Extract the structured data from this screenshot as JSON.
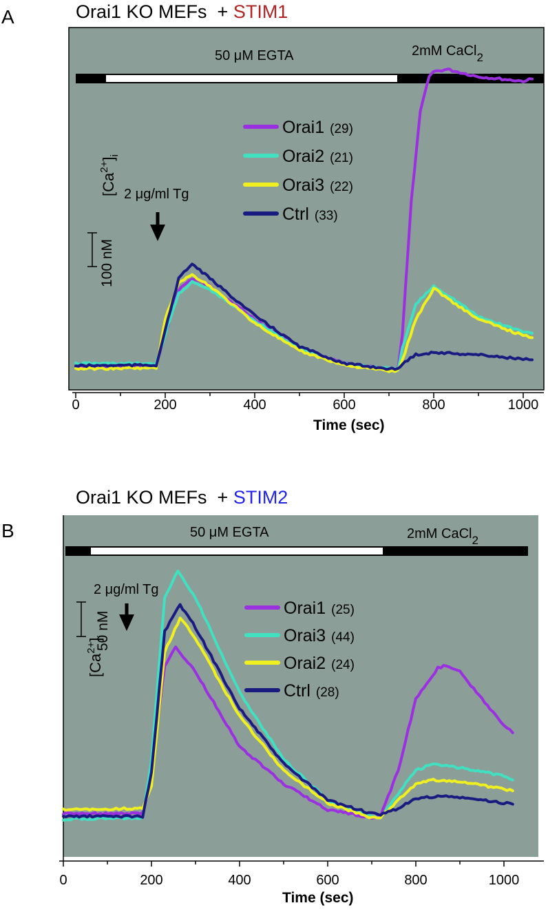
{
  "panels": [
    {
      "letter": "A",
      "title_prefix": "Orai1 KO MEFs  + ",
      "title_highlight": "STIM1",
      "highlight_color": "#b22222",
      "egta_label": "50 μM EGTA",
      "cacl2_label_main": "2mM CaCl",
      "cacl2_label_sub": "2",
      "stim_label": "2 μg/ml Tg",
      "yaxis_main": "[Ca",
      "yaxis_sup": "2+",
      "yaxis_close": "]",
      "yaxis_sub": "i",
      "scale_label": "100 nM",
      "xlabel": "Time (sec)",
      "tick_labels": [
        "0",
        "200",
        "400",
        "600",
        "800",
        "1000"
      ],
      "legend": [
        {
          "name": "Orai1",
          "count": "(29)",
          "color": "#9b30e0"
        },
        {
          "name": "Orai2",
          "count": "(21)",
          "color": "#40e0c0"
        },
        {
          "name": "Orai3",
          "count": "(22)",
          "color": "#f0f020"
        },
        {
          "name": "Ctrl",
          "count": "(33)",
          "color": "#1a1a80"
        }
      ]
    },
    {
      "letter": "B",
      "title_prefix": "Orai1 KO MEFs  + ",
      "title_highlight": "STIM2",
      "highlight_color": "#2222ee",
      "egta_label": "50 μM EGTA",
      "cacl2_label_main": "2mM CaCl",
      "cacl2_label_sub": "2",
      "stim_label": "2 μg/ml Tg",
      "yaxis_main": "[Ca",
      "yaxis_sup": "2+",
      "yaxis_close": "]",
      "yaxis_sub": "i",
      "scale_label": "50 nM",
      "xlabel": "Time (sec)",
      "tick_labels": [
        "0",
        "200",
        "400",
        "600",
        "800",
        "1000"
      ],
      "legend": [
        {
          "name": "Orai1",
          "count": "(25)",
          "color": "#9b30e0"
        },
        {
          "name": "Orai3",
          "count": "(44)",
          "color": "#40e0c0"
        },
        {
          "name": "Orai2",
          "count": "(24)",
          "color": "#f0f020"
        },
        {
          "name": "Ctrl",
          "count": "(28)",
          "color": "#1a1a80"
        }
      ]
    }
  ],
  "chart_data": [
    {
      "type": "line",
      "title": "Orai1 KO MEFs + STIM1",
      "xlabel": "Time (sec)",
      "ylabel": "[Ca2+]i (nM)",
      "xlim": [
        0,
        1050
      ],
      "ylim": [
        50,
        530
      ],
      "scale_bar_nM": 100,
      "egta_period_sec": [
        65,
        725
      ],
      "cacl2_period_sec": [
        725,
        1050
      ],
      "tg_addition_sec": 185,
      "series": [
        {
          "name": "Orai1 (29)",
          "color": "#9b30e0",
          "x": [
            0,
            180,
            200,
            230,
            260,
            300,
            400,
            500,
            600,
            700,
            720,
            730,
            750,
            770,
            790,
            800,
            830,
            900,
            1000,
            1020
          ],
          "y": [
            75,
            77,
            120,
            180,
            195,
            185,
            140,
            100,
            80,
            72,
            73,
            120,
            300,
            420,
            470,
            475,
            478,
            468,
            462,
            465
          ]
        },
        {
          "name": "Orai2 (21)",
          "color": "#40e0c0",
          "x": [
            0,
            180,
            200,
            230,
            260,
            300,
            400,
            500,
            600,
            700,
            720,
            730,
            760,
            800,
            850,
            900,
            1000,
            1020
          ],
          "y": [
            80,
            80,
            120,
            175,
            190,
            180,
            138,
            100,
            80,
            73,
            72,
            100,
            160,
            185,
            165,
            143,
            123,
            121
          ]
        },
        {
          "name": "Orai3 (22)",
          "color": "#f0f020",
          "x": [
            0,
            180,
            200,
            230,
            260,
            300,
            400,
            500,
            600,
            700,
            720,
            730,
            760,
            800,
            850,
            900,
            1000,
            1020
          ],
          "y": [
            73,
            74,
            140,
            190,
            200,
            185,
            135,
            97,
            78,
            70,
            70,
            85,
            140,
            182,
            160,
            140,
            118,
            115
          ]
        },
        {
          "name": "Ctrl (33)",
          "color": "#1a1a80",
          "x": [
            0,
            180,
            200,
            230,
            260,
            300,
            400,
            500,
            600,
            700,
            720,
            730,
            760,
            800,
            900,
            1000,
            1020
          ],
          "y": [
            77,
            78,
            125,
            195,
            215,
            195,
            145,
            103,
            80,
            73,
            72,
            80,
            92,
            95,
            92,
            86,
            85
          ]
        }
      ]
    },
    {
      "type": "line",
      "title": "Orai1 KO MEFs + STIM2",
      "xlabel": "Time (sec)",
      "ylabel": "[Ca2+]i (nM)",
      "xlim": [
        0,
        1050
      ],
      "ylim": [
        0,
        240
      ],
      "scale_bar_nM": 50,
      "egta_period_sec": [
        60,
        720
      ],
      "cacl2_period_sec": [
        720,
        1050
      ],
      "tg_addition_sec": 140,
      "series": [
        {
          "name": "Orai1 (25)",
          "color": "#9b30e0",
          "x": [
            0,
            180,
            200,
            230,
            255,
            300,
            400,
            500,
            600,
            700,
            720,
            760,
            800,
            850,
            870,
            900,
            950,
            1000,
            1020
          ],
          "y": [
            30,
            30,
            60,
            140,
            153,
            135,
            80,
            52,
            33,
            27,
            28,
            62,
            115,
            138,
            140,
            135,
            115,
            95,
            90
          ]
        },
        {
          "name": "Orai3 (44)",
          "color": "#40e0c0",
          "x": [
            0,
            180,
            200,
            230,
            260,
            300,
            400,
            500,
            600,
            700,
            720,
            760,
            800,
            840,
            900,
            1000,
            1020
          ],
          "y": [
            26,
            27,
            70,
            190,
            210,
            190,
            120,
            70,
            40,
            28,
            27,
            45,
            62,
            67,
            64,
            58,
            55
          ]
        },
        {
          "name": "Orai2 (24)",
          "color": "#f0f020",
          "x": [
            0,
            180,
            200,
            230,
            265,
            300,
            400,
            500,
            600,
            700,
            720,
            760,
            800,
            840,
            900,
            1000,
            1020
          ],
          "y": [
            33,
            34,
            50,
            150,
            175,
            160,
            102,
            62,
            38,
            27,
            27,
            40,
            52,
            55,
            54,
            48,
            47
          ]
        },
        {
          "name": "Ctrl (28)",
          "color": "#1a1a80",
          "x": [
            0,
            180,
            200,
            230,
            265,
            300,
            400,
            500,
            600,
            700,
            720,
            760,
            800,
            850,
            900,
            1000,
            1020
          ],
          "y": [
            28,
            28,
            60,
            165,
            185,
            168,
            108,
            67,
            40,
            30,
            29,
            34,
            41,
            43,
            42,
            38,
            37
          ]
        }
      ]
    }
  ]
}
